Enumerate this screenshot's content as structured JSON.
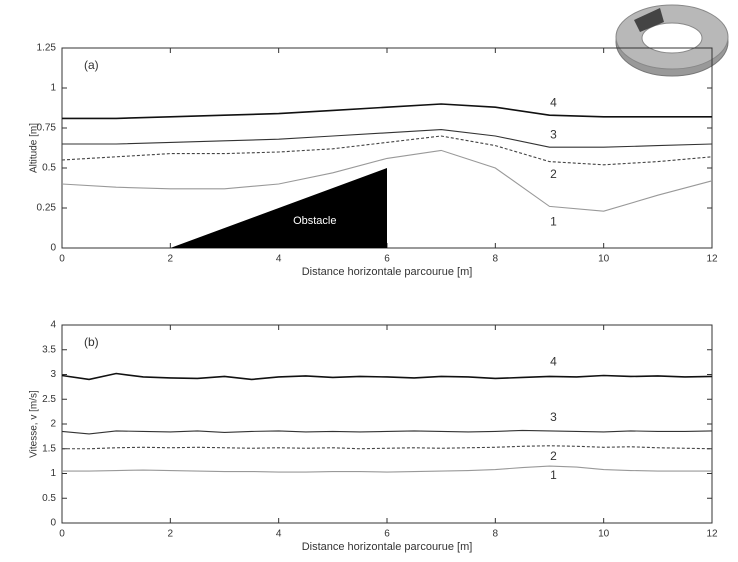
{
  "chart_data": [
    {
      "type": "line",
      "panel_label": "(a)",
      "xlabel": "Distance horizontale parcourue [m]",
      "ylabel": "Altitude [m]",
      "xlim": [
        0,
        12
      ],
      "ylim": [
        0,
        1.25
      ],
      "xticks": [
        0,
        2,
        4,
        6,
        8,
        10,
        12
      ],
      "yticks": [
        0,
        0.25,
        0.5,
        0.75,
        1,
        1.25
      ],
      "x": [
        0,
        1,
        2,
        3,
        4,
        5,
        6,
        7,
        8,
        9,
        10,
        11,
        12
      ],
      "series": [
        {
          "name": "4",
          "color": "#111111",
          "values": [
            0.81,
            0.81,
            0.82,
            0.83,
            0.84,
            0.86,
            0.88,
            0.9,
            0.88,
            0.83,
            0.82,
            0.82,
            0.82
          ]
        },
        {
          "name": "3",
          "color": "#333333",
          "values": [
            0.65,
            0.65,
            0.66,
            0.67,
            0.68,
            0.7,
            0.72,
            0.74,
            0.7,
            0.63,
            0.63,
            0.64,
            0.65
          ]
        },
        {
          "name": "2",
          "color": "#444444",
          "dash": true,
          "values": [
            0.55,
            0.57,
            0.59,
            0.59,
            0.6,
            0.62,
            0.66,
            0.7,
            0.64,
            0.54,
            0.52,
            0.54,
            0.57
          ]
        },
        {
          "name": "1",
          "color": "#999999",
          "values": [
            0.4,
            0.38,
            0.37,
            0.37,
            0.4,
            0.47,
            0.56,
            0.61,
            0.5,
            0.26,
            0.23,
            0.33,
            0.42
          ]
        }
      ],
      "obstacle": {
        "label": "Obstacle",
        "x": [
          2,
          6,
          6
        ],
        "y": [
          0,
          0,
          0.5
        ],
        "color": "#000000"
      }
    },
    {
      "type": "line",
      "panel_label": "(b)",
      "xlabel": "Distance horizontale parcourue [m]",
      "ylabel": "Vitesse, v [m/s]",
      "xlim": [
        0,
        12
      ],
      "ylim": [
        0,
        4
      ],
      "xticks": [
        0,
        2,
        4,
        6,
        8,
        10,
        12
      ],
      "yticks": [
        0,
        0.5,
        1,
        1.5,
        2,
        2.5,
        3,
        3.5,
        4
      ],
      "x": [
        0,
        0.5,
        1,
        1.5,
        2,
        2.5,
        3,
        3.5,
        4,
        4.5,
        5,
        5.5,
        6,
        6.5,
        7,
        7.5,
        8,
        8.5,
        9,
        9.5,
        10,
        10.5,
        11,
        11.5,
        12
      ],
      "series": [
        {
          "name": "4",
          "color": "#111111",
          "values": [
            2.98,
            2.9,
            3.02,
            2.95,
            2.93,
            2.92,
            2.96,
            2.9,
            2.95,
            2.97,
            2.94,
            2.96,
            2.95,
            2.93,
            2.96,
            2.95,
            2.92,
            2.94,
            2.96,
            2.95,
            2.98,
            2.96,
            2.97,
            2.95,
            2.96
          ]
        },
        {
          "name": "3",
          "color": "#333333",
          "values": [
            1.85,
            1.8,
            1.86,
            1.85,
            1.84,
            1.86,
            1.83,
            1.85,
            1.86,
            1.84,
            1.85,
            1.84,
            1.85,
            1.86,
            1.85,
            1.84,
            1.85,
            1.87,
            1.86,
            1.85,
            1.84,
            1.86,
            1.85,
            1.85,
            1.86
          ]
        },
        {
          "name": "2",
          "color": "#444444",
          "dash": true,
          "values": [
            1.5,
            1.5,
            1.52,
            1.53,
            1.52,
            1.53,
            1.52,
            1.51,
            1.52,
            1.51,
            1.52,
            1.5,
            1.51,
            1.52,
            1.51,
            1.52,
            1.53,
            1.55,
            1.56,
            1.55,
            1.53,
            1.54,
            1.52,
            1.51,
            1.5
          ]
        },
        {
          "name": "1",
          "color": "#999999",
          "values": [
            1.05,
            1.05,
            1.06,
            1.07,
            1.06,
            1.05,
            1.04,
            1.04,
            1.03,
            1.03,
            1.04,
            1.04,
            1.03,
            1.04,
            1.05,
            1.06,
            1.08,
            1.12,
            1.15,
            1.13,
            1.08,
            1.06,
            1.05,
            1.05,
            1.05
          ]
        }
      ]
    }
  ]
}
